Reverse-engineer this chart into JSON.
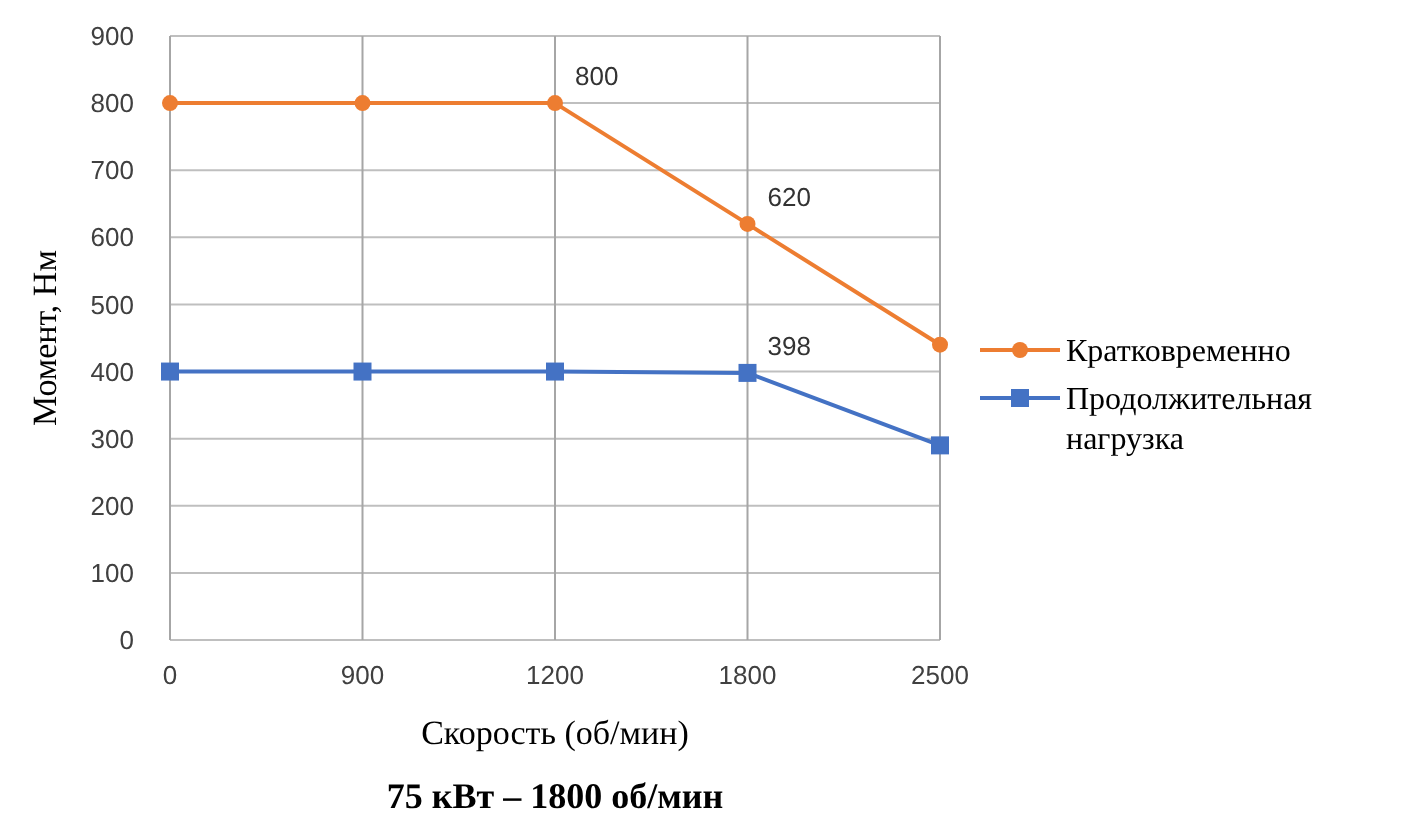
{
  "chart_data": {
    "type": "line",
    "title": "75 кВт – 1800 об/мин",
    "xlabel": "Скорость (об/мин)",
    "ylabel": "Момент, Нм",
    "categories": [
      "0",
      "900",
      "1200",
      "1800",
      "2500"
    ],
    "series": [
      {
        "name": "Кратковременно",
        "color": "#ed7d31",
        "marker": "circle",
        "values": [
          800,
          800,
          800,
          620,
          440
        ],
        "value_labels": [
          null,
          null,
          "800",
          "620",
          null
        ]
      },
      {
        "name": "Продолжительная нагрузка",
        "color": "#4472c4",
        "marker": "square",
        "values": [
          400,
          400,
          400,
          398,
          290
        ],
        "value_labels": [
          null,
          null,
          null,
          "398",
          null
        ]
      }
    ],
    "ylim": [
      0,
      900
    ],
    "yticks": [
      0,
      100,
      200,
      300,
      400,
      500,
      600,
      700,
      800,
      900
    ],
    "grid": true,
    "legend": "right"
  }
}
